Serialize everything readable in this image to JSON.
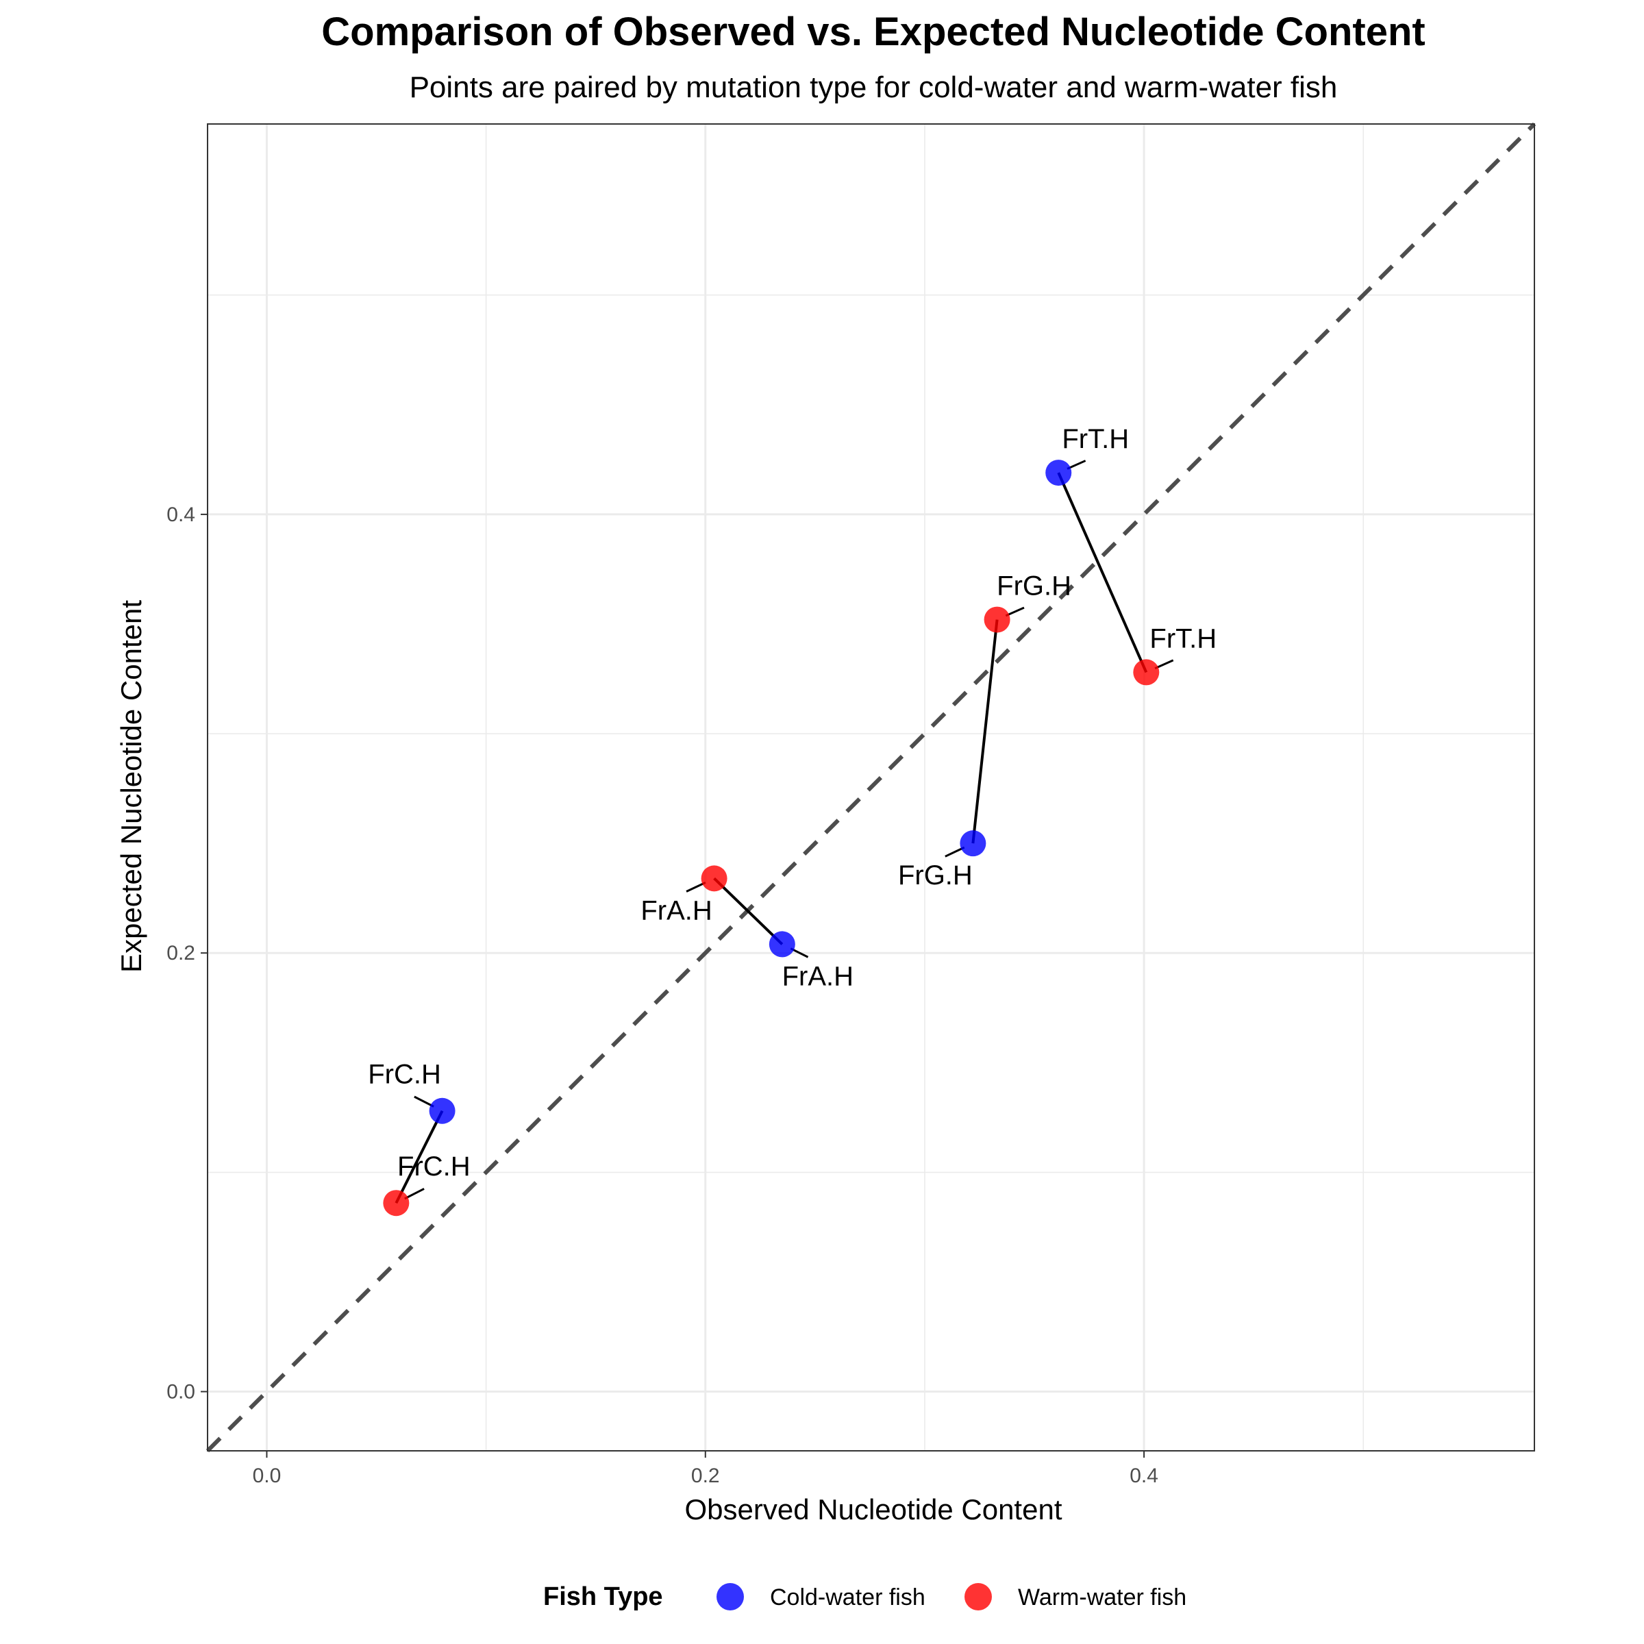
{
  "chart_data": {
    "type": "scatter",
    "title": "Comparison of Observed vs. Expected Nucleotide Content",
    "subtitle": "Points are paired by mutation type for cold-water and warm-water fish",
    "xlabel": "Observed Nucleotide Content",
    "ylabel": "Expected Nucleotide Content",
    "xlim": [
      -0.027,
      0.578
    ],
    "ylim": [
      -0.027,
      0.578
    ],
    "x_ticks": [
      0.0,
      0.2,
      0.4
    ],
    "y_ticks": [
      0.0,
      0.2,
      0.4
    ],
    "x_tick_labels": [
      "0.0",
      "0.2",
      "0.4"
    ],
    "y_tick_labels": [
      "0.0",
      "0.2",
      "0.4"
    ],
    "grid": true,
    "reference_line": "y = x (dashed)",
    "legend": {
      "title": "Fish Type",
      "position": "bottom",
      "entries": [
        {
          "name": "Cold-water fish",
          "color": "#0000FF"
        },
        {
          "name": "Warm-water fish",
          "color": "#FF0000"
        }
      ]
    },
    "series": [
      {
        "name": "Cold-water fish",
        "color": "#0000FF",
        "points": [
          {
            "label": "FrC.H",
            "x": 0.08,
            "y": 0.128
          },
          {
            "label": "FrA.H",
            "x": 0.235,
            "y": 0.204
          },
          {
            "label": "FrG.H",
            "x": 0.322,
            "y": 0.25
          },
          {
            "label": "FrT.H",
            "x": 0.361,
            "y": 0.419
          }
        ]
      },
      {
        "name": "Warm-water fish",
        "color": "#FF0000",
        "points": [
          {
            "label": "FrC.H",
            "x": 0.059,
            "y": 0.086
          },
          {
            "label": "FrA.H",
            "x": 0.204,
            "y": 0.234
          },
          {
            "label": "FrG.H",
            "x": 0.333,
            "y": 0.352
          },
          {
            "label": "FrT.H",
            "x": 0.401,
            "y": 0.328
          }
        ]
      }
    ],
    "pairs": [
      "FrC.H",
      "FrA.H",
      "FrG.H",
      "FrT.H"
    ]
  }
}
